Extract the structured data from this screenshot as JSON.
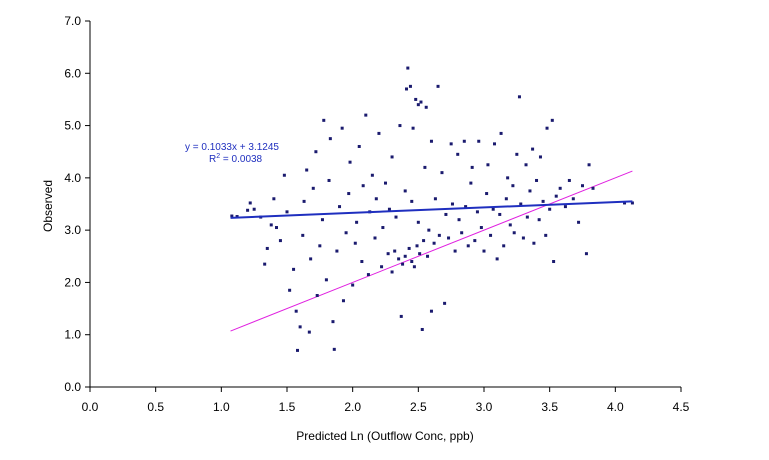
{
  "chart_data": {
    "type": "scatter",
    "xlabel": "Predicted Ln (Outflow Conc, ppb)",
    "ylabel": "Observed",
    "xlim": [
      0,
      4.5
    ],
    "ylim": [
      0,
      7
    ],
    "x_ticks": [
      "0.0",
      "0.5",
      "1.0",
      "1.5",
      "2.0",
      "2.5",
      "3.0",
      "3.5",
      "4.0",
      "4.5"
    ],
    "y_ticks": [
      "0.0",
      "1.0",
      "2.0",
      "3.0",
      "4.0",
      "5.0",
      "6.0",
      "7.0"
    ],
    "grid": false,
    "legend": "none",
    "colors": {
      "points": "#1a1a6e",
      "trendline": "#1f2fbf",
      "identity_line": "#e020e0",
      "annotation": "#1f2fbf"
    },
    "annotation": {
      "equation": "y = 0.1033x + 3.1245",
      "r2_label": "R",
      "r2_superscript": "2",
      "r2_value": " = 0.0038"
    },
    "trendline": {
      "slope": 0.1033,
      "intercept": 3.1245,
      "x_range": [
        1.07,
        4.13
      ]
    },
    "identity_line": {
      "x_range": [
        1.07,
        4.13
      ]
    },
    "series": [
      {
        "values": [
          [
            1.08,
            3.27
          ],
          [
            1.12,
            3.26
          ],
          [
            1.2,
            3.38
          ],
          [
            1.22,
            3.52
          ],
          [
            1.25,
            3.4
          ],
          [
            1.3,
            3.25
          ],
          [
            1.33,
            2.35
          ],
          [
            1.35,
            2.65
          ],
          [
            1.38,
            3.1
          ],
          [
            1.4,
            3.6
          ],
          [
            1.42,
            3.05
          ],
          [
            1.45,
            2.8
          ],
          [
            1.48,
            4.05
          ],
          [
            1.5,
            3.35
          ],
          [
            1.52,
            1.85
          ],
          [
            1.55,
            2.25
          ],
          [
            1.57,
            1.45
          ],
          [
            1.58,
            0.7
          ],
          [
            1.6,
            1.15
          ],
          [
            1.62,
            2.9
          ],
          [
            1.63,
            3.55
          ],
          [
            1.65,
            4.15
          ],
          [
            1.67,
            1.05
          ],
          [
            1.68,
            2.45
          ],
          [
            1.7,
            3.8
          ],
          [
            1.72,
            4.5
          ],
          [
            1.73,
            1.75
          ],
          [
            1.75,
            2.7
          ],
          [
            1.77,
            3.2
          ],
          [
            1.78,
            5.1
          ],
          [
            1.8,
            2.05
          ],
          [
            1.82,
            3.95
          ],
          [
            1.83,
            4.75
          ],
          [
            1.85,
            1.25
          ],
          [
            1.86,
            0.72
          ],
          [
            1.88,
            2.6
          ],
          [
            1.9,
            3.45
          ],
          [
            1.92,
            4.95
          ],
          [
            1.93,
            1.65
          ],
          [
            1.95,
            2.95
          ],
          [
            1.97,
            3.7
          ],
          [
            1.98,
            4.3
          ],
          [
            2.0,
            1.95
          ],
          [
            2.02,
            2.75
          ],
          [
            2.03,
            3.15
          ],
          [
            2.05,
            4.6
          ],
          [
            2.07,
            2.4
          ],
          [
            2.08,
            3.85
          ],
          [
            2.1,
            5.2
          ],
          [
            2.12,
            2.15
          ],
          [
            2.13,
            3.35
          ],
          [
            2.15,
            4.05
          ],
          [
            2.17,
            2.85
          ],
          [
            2.18,
            3.6
          ],
          [
            2.2,
            4.85
          ],
          [
            2.22,
            2.3
          ],
          [
            2.23,
            3.05
          ],
          [
            2.25,
            3.9
          ],
          [
            2.27,
            2.55
          ],
          [
            2.28,
            3.4
          ],
          [
            2.3,
            4.4
          ],
          [
            2.3,
            2.2
          ],
          [
            2.32,
            2.6
          ],
          [
            2.33,
            3.25
          ],
          [
            2.35,
            2.45
          ],
          [
            2.36,
            5.0
          ],
          [
            2.37,
            1.35
          ],
          [
            2.38,
            2.35
          ],
          [
            2.4,
            3.75
          ],
          [
            2.4,
            2.5
          ],
          [
            2.41,
            5.7
          ],
          [
            2.42,
            6.1
          ],
          [
            2.43,
            2.65
          ],
          [
            2.44,
            5.75
          ],
          [
            2.45,
            2.4
          ],
          [
            2.45,
            3.55
          ],
          [
            2.46,
            4.95
          ],
          [
            2.47,
            2.3
          ],
          [
            2.48,
            5.5
          ],
          [
            2.49,
            2.7
          ],
          [
            2.5,
            5.4
          ],
          [
            2.5,
            3.15
          ],
          [
            2.51,
            2.55
          ],
          [
            2.52,
            5.45
          ],
          [
            2.53,
            1.1
          ],
          [
            2.54,
            2.8
          ],
          [
            2.55,
            4.2
          ],
          [
            2.56,
            5.35
          ],
          [
            2.57,
            2.5
          ],
          [
            2.58,
            3.0
          ],
          [
            2.6,
            4.7
          ],
          [
            2.6,
            1.45
          ],
          [
            2.62,
            2.75
          ],
          [
            2.63,
            3.6
          ],
          [
            2.65,
            5.75
          ],
          [
            2.66,
            2.9
          ],
          [
            2.68,
            4.1
          ],
          [
            2.7,
            1.6
          ],
          [
            2.71,
            3.3
          ],
          [
            2.73,
            2.85
          ],
          [
            2.75,
            4.65
          ],
          [
            2.76,
            3.5
          ],
          [
            2.78,
            2.6
          ],
          [
            2.8,
            4.45
          ],
          [
            2.81,
            3.2
          ],
          [
            2.83,
            2.95
          ],
          [
            2.85,
            4.7
          ],
          [
            2.86,
            3.45
          ],
          [
            2.88,
            2.7
          ],
          [
            2.9,
            3.9
          ],
          [
            2.91,
            4.2
          ],
          [
            2.93,
            2.8
          ],
          [
            2.95,
            3.35
          ],
          [
            2.96,
            4.7
          ],
          [
            2.98,
            3.05
          ],
          [
            3.0,
            2.6
          ],
          [
            3.02,
            3.7
          ],
          [
            3.03,
            4.25
          ],
          [
            3.05,
            2.9
          ],
          [
            3.07,
            3.4
          ],
          [
            3.08,
            4.65
          ],
          [
            3.1,
            2.45
          ],
          [
            3.12,
            3.3
          ],
          [
            3.13,
            4.85
          ],
          [
            3.15,
            2.7
          ],
          [
            3.17,
            3.6
          ],
          [
            3.18,
            4.0
          ],
          [
            3.2,
            3.1
          ],
          [
            3.22,
            3.85
          ],
          [
            3.23,
            2.95
          ],
          [
            3.25,
            4.45
          ],
          [
            3.27,
            5.55
          ],
          [
            3.28,
            3.5
          ],
          [
            3.3,
            2.85
          ],
          [
            3.32,
            4.25
          ],
          [
            3.33,
            3.25
          ],
          [
            3.35,
            3.75
          ],
          [
            3.37,
            4.55
          ],
          [
            3.38,
            2.75
          ],
          [
            3.4,
            3.95
          ],
          [
            3.42,
            3.2
          ],
          [
            3.43,
            4.4
          ],
          [
            3.45,
            3.55
          ],
          [
            3.47,
            2.9
          ],
          [
            3.48,
            4.95
          ],
          [
            3.5,
            3.4
          ],
          [
            3.52,
            5.1
          ],
          [
            3.53,
            2.4
          ],
          [
            3.55,
            3.65
          ],
          [
            3.58,
            3.8
          ],
          [
            3.62,
            3.45
          ],
          [
            3.65,
            3.95
          ],
          [
            3.68,
            3.6
          ],
          [
            3.72,
            3.15
          ],
          [
            3.75,
            3.85
          ],
          [
            3.78,
            2.55
          ],
          [
            3.8,
            4.25
          ],
          [
            3.83,
            3.8
          ],
          [
            4.07,
            3.52
          ],
          [
            4.13,
            3.52
          ]
        ]
      }
    ]
  }
}
